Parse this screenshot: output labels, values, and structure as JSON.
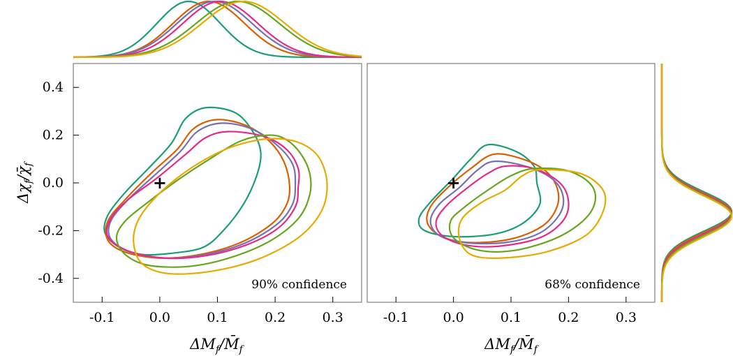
{
  "figure": {
    "colors": [
      "#1b9e77",
      "#d95f02",
      "#7570b3",
      "#e7298a",
      "#66a61e",
      "#e6ab02"
    ],
    "frame_color": "#808080",
    "truth_marker": {
      "label": "+",
      "x": 0.0,
      "y": 0.0
    }
  },
  "chart_data": [
    {
      "type": "line",
      "panel": "top-marginal",
      "description_axis": "x",
      "xlim": [
        -0.15,
        0.35
      ],
      "series": [
        {
          "mean": 0.05,
          "sd": 0.055
        },
        {
          "mean": 0.085,
          "sd": 0.062
        },
        {
          "mean": 0.095,
          "sd": 0.065
        },
        {
          "mean": 0.105,
          "sd": 0.065
        },
        {
          "mean": 0.135,
          "sd": 0.072
        },
        {
          "mean": 0.145,
          "sd": 0.072
        }
      ]
    },
    {
      "type": "line",
      "panel": "left-contours",
      "annotation": "90% confidence",
      "xlabel": "ΔM",
      "xlabel_sub": "f",
      "xlabel_den": "M̄",
      "ylabel": "Δχ",
      "ylabel_sub": "f",
      "ylabel_den": "χ̄",
      "xlim": [
        -0.15,
        0.35
      ],
      "ylim": [
        -0.5,
        0.5
      ],
      "xticks": [
        -0.1,
        0.0,
        0.1,
        0.2,
        0.3
      ],
      "xtick_labels": [
        "-0.1",
        "0.0",
        "0.1",
        "0.2",
        "0.3"
      ],
      "yticks": [
        -0.4,
        -0.2,
        0.0,
        0.2,
        0.4
      ],
      "ytick_labels": [
        "-0.4",
        "-0.2",
        "0.0",
        "0.2",
        "0.4"
      ],
      "series": [
        {
          "points": [
            [
              0.08,
              0.315
            ],
            [
              0.13,
              0.295
            ],
            [
              0.16,
              0.22
            ],
            [
              0.175,
              0.13
            ],
            [
              0.168,
              0.03
            ],
            [
              0.145,
              -0.09
            ],
            [
              0.11,
              -0.2
            ],
            [
              0.075,
              -0.27
            ],
            [
              0.02,
              -0.295
            ],
            [
              -0.03,
              -0.3
            ],
            [
              -0.07,
              -0.27
            ],
            [
              -0.095,
              -0.21
            ],
            [
              -0.09,
              -0.135
            ],
            [
              -0.06,
              -0.04
            ],
            [
              -0.02,
              0.06
            ],
            [
              0.02,
              0.165
            ],
            [
              0.045,
              0.27
            ]
          ]
        },
        {
          "points": [
            [
              0.1,
              0.265
            ],
            [
              0.15,
              0.24
            ],
            [
              0.19,
              0.175
            ],
            [
              0.215,
              0.09
            ],
            [
              0.225,
              -0.01
            ],
            [
              0.22,
              -0.09
            ],
            [
              0.195,
              -0.17
            ],
            [
              0.14,
              -0.25
            ],
            [
              0.07,
              -0.3
            ],
            [
              0.0,
              -0.315
            ],
            [
              -0.06,
              -0.29
            ],
            [
              -0.09,
              -0.24
            ],
            [
              -0.09,
              -0.16
            ],
            [
              -0.06,
              -0.07
            ],
            [
              -0.015,
              0.04
            ],
            [
              0.03,
              0.14
            ],
            [
              0.06,
              0.23
            ]
          ]
        },
        {
          "points": [
            [
              0.105,
              0.25
            ],
            [
              0.155,
              0.23
            ],
            [
              0.2,
              0.165
            ],
            [
              0.23,
              0.08
            ],
            [
              0.235,
              -0.01
            ],
            [
              0.23,
              -0.09
            ],
            [
              0.205,
              -0.17
            ],
            [
              0.15,
              -0.25
            ],
            [
              0.08,
              -0.3
            ],
            [
              0.01,
              -0.315
            ],
            [
              -0.05,
              -0.29
            ],
            [
              -0.085,
              -0.235
            ],
            [
              -0.085,
              -0.16
            ],
            [
              -0.055,
              -0.07
            ],
            [
              -0.01,
              0.03
            ],
            [
              0.035,
              0.13
            ],
            [
              0.065,
              0.215
            ]
          ]
        },
        {
          "points": [
            [
              0.12,
              0.215
            ],
            [
              0.18,
              0.195
            ],
            [
              0.22,
              0.14
            ],
            [
              0.24,
              0.06
            ],
            [
              0.24,
              -0.02
            ],
            [
              0.235,
              -0.1
            ],
            [
              0.205,
              -0.19
            ],
            [
              0.15,
              -0.26
            ],
            [
              0.08,
              -0.305
            ],
            [
              0.01,
              -0.315
            ],
            [
              -0.055,
              -0.285
            ],
            [
              -0.09,
              -0.225
            ],
            [
              -0.085,
              -0.15
            ],
            [
              -0.055,
              -0.07
            ],
            [
              -0.005,
              0.02
            ],
            [
              0.045,
              0.12
            ],
            [
              0.08,
              0.19
            ]
          ]
        },
        {
          "points": [
            [
              0.19,
              0.2
            ],
            [
              0.22,
              0.18
            ],
            [
              0.245,
              0.12
            ],
            [
              0.26,
              0.04
            ],
            [
              0.26,
              -0.05
            ],
            [
              0.24,
              -0.15
            ],
            [
              0.19,
              -0.245
            ],
            [
              0.12,
              -0.315
            ],
            [
              0.05,
              -0.35
            ],
            [
              -0.02,
              -0.345
            ],
            [
              -0.06,
              -0.3
            ],
            [
              -0.075,
              -0.23
            ],
            [
              -0.06,
              -0.16
            ],
            [
              -0.02,
              -0.08
            ],
            [
              0.03,
              0.01
            ],
            [
              0.08,
              0.09
            ],
            [
              0.14,
              0.175
            ]
          ]
        },
        {
          "points": [
            [
              0.19,
              0.185
            ],
            [
              0.24,
              0.17
            ],
            [
              0.275,
              0.11
            ],
            [
              0.29,
              0.0
            ],
            [
              0.28,
              -0.12
            ],
            [
              0.24,
              -0.23
            ],
            [
              0.17,
              -0.32
            ],
            [
              0.09,
              -0.37
            ],
            [
              0.015,
              -0.38
            ],
            [
              -0.03,
              -0.34
            ],
            [
              -0.045,
              -0.26
            ],
            [
              -0.04,
              -0.17
            ],
            [
              -0.015,
              -0.08
            ],
            [
              0.03,
              0.02
            ],
            [
              0.08,
              0.1
            ],
            [
              0.13,
              0.155
            ]
          ]
        }
      ]
    },
    {
      "type": "line",
      "panel": "right-contours",
      "annotation": "68% confidence",
      "xlabel": "ΔM",
      "xlabel_sub": "f",
      "xlabel_den": "M̄",
      "xlim": [
        -0.15,
        0.35
      ],
      "ylim": [
        -0.5,
        0.5
      ],
      "xticks": [
        -0.1,
        0.0,
        0.1,
        0.2,
        0.3
      ],
      "xtick_labels": [
        "-0.1",
        "0.0",
        "0.1",
        "0.2",
        "0.3"
      ],
      "series": [
        {
          "points": [
            [
              0.06,
              0.16
            ],
            [
              0.11,
              0.13
            ],
            [
              0.14,
              0.07
            ],
            [
              0.145,
              0.0
            ],
            [
              0.15,
              -0.09
            ],
            [
              0.12,
              -0.17
            ],
            [
              0.07,
              -0.215
            ],
            [
              0.0,
              -0.225
            ],
            [
              -0.05,
              -0.2
            ],
            [
              -0.06,
              -0.15
            ],
            [
              -0.04,
              -0.08
            ],
            [
              0.0,
              0.02
            ],
            [
              0.03,
              0.1
            ]
          ]
        },
        {
          "points": [
            [
              0.07,
              0.12
            ],
            [
              0.12,
              0.1
            ],
            [
              0.16,
              0.05
            ],
            [
              0.18,
              -0.02
            ],
            [
              0.18,
              -0.1
            ],
            [
              0.155,
              -0.18
            ],
            [
              0.1,
              -0.235
            ],
            [
              0.03,
              -0.25
            ],
            [
              -0.02,
              -0.225
            ],
            [
              -0.045,
              -0.17
            ],
            [
              -0.04,
              -0.1
            ],
            [
              -0.01,
              -0.02
            ],
            [
              0.03,
              0.06
            ]
          ]
        },
        {
          "points": [
            [
              0.07,
              0.09
            ],
            [
              0.125,
              0.07
            ],
            [
              0.17,
              0.02
            ],
            [
              0.19,
              -0.05
            ],
            [
              0.185,
              -0.13
            ],
            [
              0.15,
              -0.21
            ],
            [
              0.09,
              -0.25
            ],
            [
              0.02,
              -0.25
            ],
            [
              -0.025,
              -0.22
            ],
            [
              -0.04,
              -0.16
            ],
            [
              -0.025,
              -0.09
            ],
            [
              0.01,
              -0.02
            ],
            [
              0.04,
              0.05
            ]
          ]
        },
        {
          "points": [
            [
              0.09,
              0.07
            ],
            [
              0.14,
              0.06
            ],
            [
              0.185,
              0.0
            ],
            [
              0.2,
              -0.08
            ],
            [
              0.19,
              -0.16
            ],
            [
              0.15,
              -0.23
            ],
            [
              0.08,
              -0.265
            ],
            [
              0.02,
              -0.26
            ],
            [
              -0.02,
              -0.22
            ],
            [
              -0.03,
              -0.16
            ],
            [
              -0.01,
              -0.09
            ],
            [
              0.03,
              -0.01
            ],
            [
              0.06,
              0.04
            ]
          ]
        },
        {
          "points": [
            [
              0.14,
              0.06
            ],
            [
              0.2,
              0.05
            ],
            [
              0.24,
              -0.01
            ],
            [
              0.245,
              -0.09
            ],
            [
              0.22,
              -0.17
            ],
            [
              0.17,
              -0.24
            ],
            [
              0.1,
              -0.285
            ],
            [
              0.04,
              -0.28
            ],
            [
              0.0,
              -0.23
            ],
            [
              -0.005,
              -0.16
            ],
            [
              0.02,
              -0.1
            ],
            [
              0.06,
              -0.03
            ],
            [
              0.1,
              0.03
            ]
          ]
        },
        {
          "points": [
            [
              0.15,
              0.055
            ],
            [
              0.22,
              0.04
            ],
            [
              0.26,
              -0.03
            ],
            [
              0.26,
              -0.12
            ],
            [
              0.23,
              -0.22
            ],
            [
              0.16,
              -0.29
            ],
            [
              0.08,
              -0.315
            ],
            [
              0.03,
              -0.3
            ],
            [
              0.01,
              -0.23
            ],
            [
              0.015,
              -0.15
            ],
            [
              0.05,
              -0.08
            ],
            [
              0.09,
              -0.03
            ],
            [
              0.12,
              0.03
            ]
          ]
        }
      ]
    },
    {
      "type": "line",
      "panel": "right-marginal",
      "description_axis": "y",
      "ylim": [
        -0.5,
        0.5
      ],
      "series": [
        {
          "mean": -0.12,
          "sd": 0.082
        },
        {
          "mean": -0.125,
          "sd": 0.082
        },
        {
          "mean": -0.13,
          "sd": 0.083
        },
        {
          "mean": -0.13,
          "sd": 0.083
        },
        {
          "mean": -0.135,
          "sd": 0.084
        },
        {
          "mean": -0.14,
          "sd": 0.085
        }
      ]
    }
  ]
}
